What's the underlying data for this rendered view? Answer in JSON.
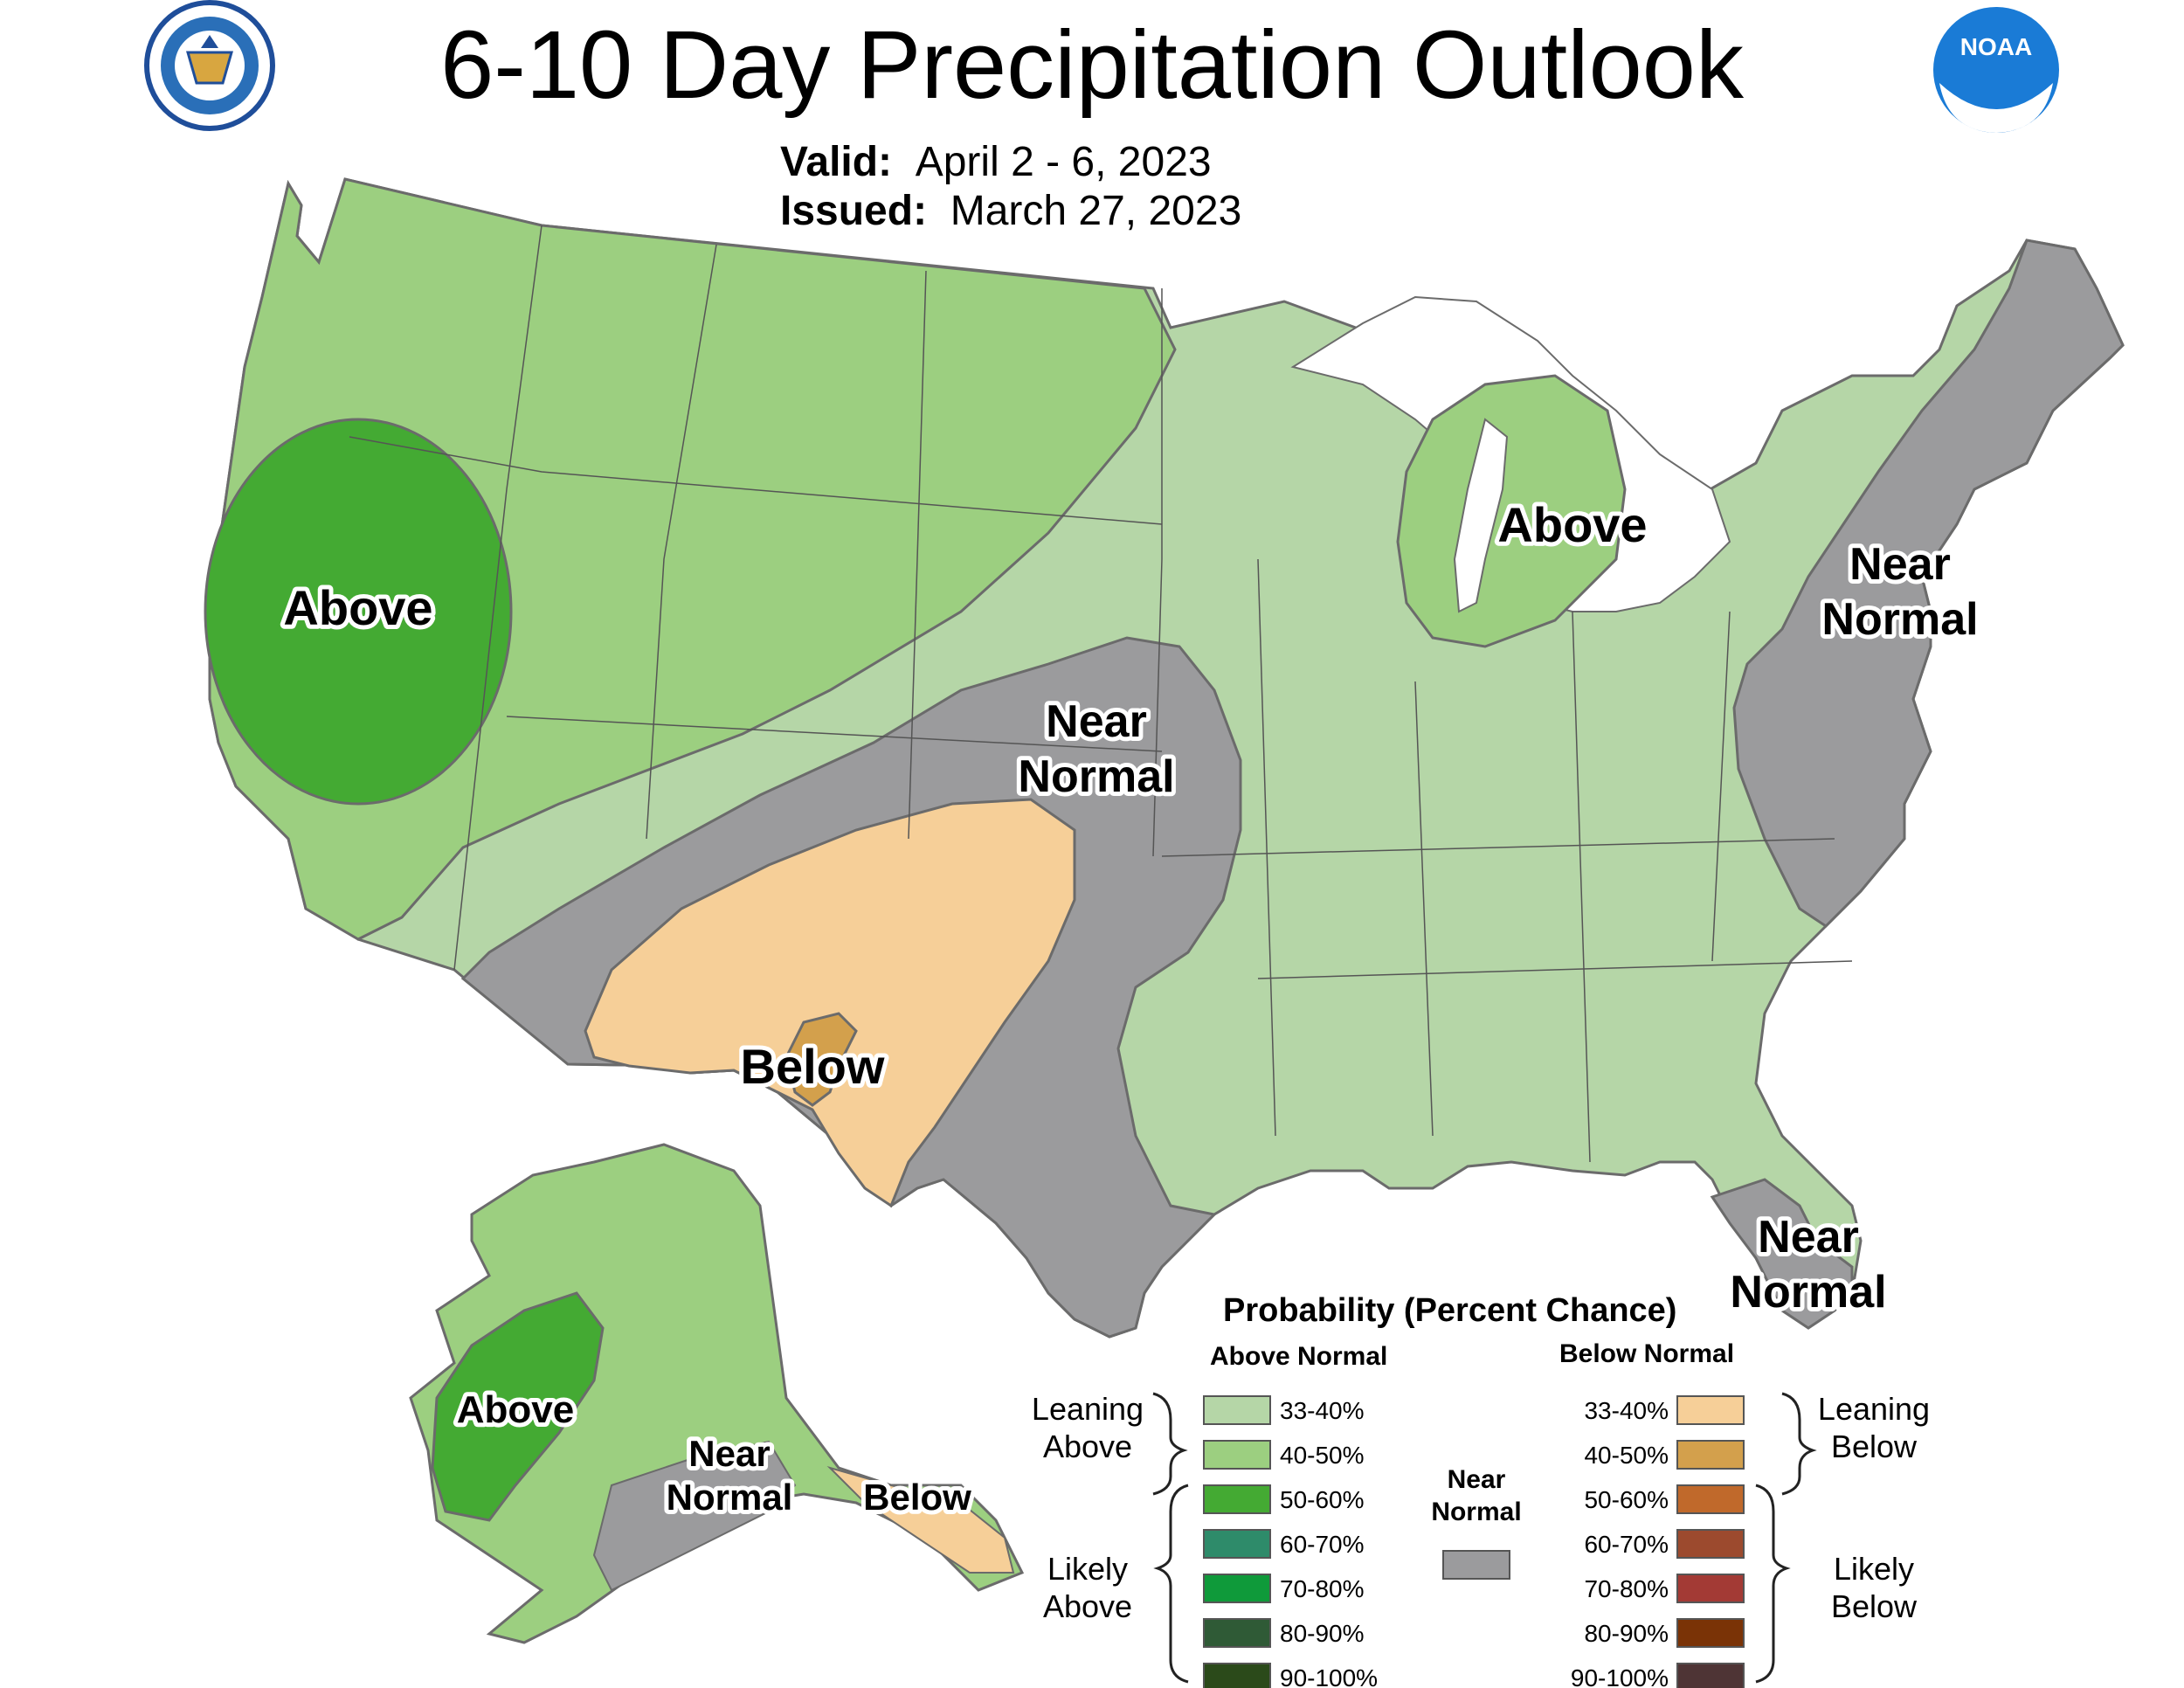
{
  "header": {
    "title": "6-10 Day Precipitation Outlook",
    "valid_label": "Valid:",
    "valid_value": "April 2 - 6, 2023",
    "issued_label": "Issued:",
    "issued_value": "March 27, 2023",
    "left_logo": "department-of-commerce-seal",
    "right_logo": "noaa-logo",
    "right_logo_text": "NOAA"
  },
  "regions": {
    "above_west": "Above",
    "above_michigan": "Above",
    "near_normal_plains_1": "Near",
    "near_normal_plains_2": "Normal",
    "near_normal_east_1": "Near",
    "near_normal_east_2": "Normal",
    "below_southwest": "Below",
    "near_normal_florida_1": "Near",
    "near_normal_florida_2": "Normal",
    "above_alaska": "Above",
    "near_normal_alaska_1": "Near",
    "near_normal_alaska_2": "Normal",
    "below_alaska": "Below"
  },
  "legend": {
    "title": "Probability (Percent Chance)",
    "above_heading": "Above Normal",
    "below_heading": "Below Normal",
    "near_heading_1": "Near",
    "near_heading_2": "Normal",
    "leaning_above_1": "Leaning",
    "leaning_above_2": "Above",
    "likely_above_1": "Likely",
    "likely_above_2": "Above",
    "leaning_below_1": "Leaning",
    "leaning_below_2": "Below",
    "likely_below_1": "Likely",
    "likely_below_2": "Below",
    "above_items": [
      {
        "label": "33-40%",
        "color": "#b5d6a7"
      },
      {
        "label": "40-50%",
        "color": "#9ccf80"
      },
      {
        "label": "50-60%",
        "color": "#44aa33"
      },
      {
        "label": "60-70%",
        "color": "#2e8b6a"
      },
      {
        "label": "70-80%",
        "color": "#0f9a3a"
      },
      {
        "label": "80-90%",
        "color": "#2f5a36"
      },
      {
        "label": "90-100%",
        "color": "#2b4a1a"
      }
    ],
    "below_items": [
      {
        "label": "33-40%",
        "color": "#f6cf98"
      },
      {
        "label": "40-50%",
        "color": "#d3a04c"
      },
      {
        "label": "50-60%",
        "color": "#c0692b"
      },
      {
        "label": "60-70%",
        "color": "#9c4a2e"
      },
      {
        "label": "70-80%",
        "color": "#a33a35"
      },
      {
        "label": "80-90%",
        "color": "#7a3306"
      },
      {
        "label": "90-100%",
        "color": "#4e3435"
      }
    ],
    "near_color": "#9b9b9d"
  }
}
